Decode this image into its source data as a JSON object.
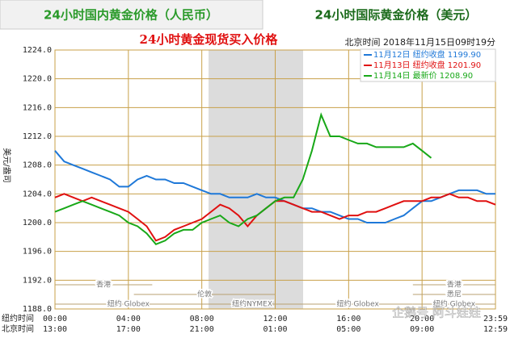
{
  "tabs": [
    "24小时国内黄金价格（人民币）",
    "24小时国际黄金价格（美元）"
  ],
  "chart_data": {
    "type": "line",
    "title": "24小时黄金现货买入价格",
    "subtitle": "北京时间 2018年11月15日09时19分",
    "y_label": "美元/盎司",
    "x_row_labels": [
      "纽约时间",
      "北京时间"
    ],
    "x": [
      0,
      0.5,
      1,
      1.5,
      2,
      2.5,
      3,
      3.5,
      4,
      4.5,
      5,
      5.5,
      6,
      6.5,
      7,
      7.5,
      8,
      8.5,
      9,
      9.5,
      10,
      10.5,
      11,
      11.5,
      12,
      12.5,
      13,
      13.5,
      14,
      14.5,
      15,
      15.5,
      16,
      16.5,
      17,
      17.5,
      18,
      18.5,
      19,
      19.5,
      20,
      20.5,
      21,
      21.5,
      22,
      22.5,
      23,
      23.5,
      24
    ],
    "series": [
      {
        "name": "11月12日 纽约收盘 1199.90",
        "color": "#1e78d8",
        "values": [
          1210,
          1208.5,
          1208,
          1207.5,
          1207,
          1206.5,
          1206,
          1205,
          1205,
          1206,
          1206.5,
          1206,
          1206,
          1205.5,
          1205.5,
          1205,
          1204.5,
          1204,
          1204,
          1203.5,
          1203.5,
          1203.5,
          1204,
          1203.5,
          1203.5,
          1203,
          1202.5,
          1202,
          1202,
          1201.5,
          1201.5,
          1201,
          1200.5,
          1200.5,
          1200,
          1200,
          1200,
          1200.5,
          1201,
          1202,
          1203,
          1203,
          1203.5,
          1204,
          1204.5,
          1204.5,
          1204.5,
          1204,
          1204
        ]
      },
      {
        "name": "11月13日 纽约收盘 1201.90",
        "color": "#e01010",
        "values": [
          1203.5,
          1204,
          1203.5,
          1203,
          1203.5,
          1203,
          1202.5,
          1202,
          1201.5,
          1200.5,
          1199.5,
          1197.5,
          1198,
          1199,
          1199.5,
          1200,
          1200.5,
          1201.5,
          1202.5,
          1202,
          1201,
          1199.5,
          1201,
          1202,
          1203,
          1203,
          1202.5,
          1202,
          1201.5,
          1201.5,
          1201,
          1200.5,
          1201,
          1201,
          1201.5,
          1201.5,
          1202,
          1202.5,
          1203,
          1203,
          1203,
          1203.5,
          1203.5,
          1204,
          1203.5,
          1203.5,
          1203,
          1203,
          1202.5
        ]
      },
      {
        "name": "11月14日 最新价 1208.90",
        "color": "#18a818",
        "values": [
          1201.5,
          1202,
          1202.5,
          1203,
          1202.5,
          1202,
          1201.5,
          1201,
          1200,
          1199.5,
          1198.5,
          1197,
          1197.5,
          1198.5,
          1199,
          1199,
          1200,
          1200.5,
          1201,
          1200,
          1199.5,
          1200.5,
          1201,
          1202,
          1203,
          1203.5,
          1203.5,
          1206,
          1210,
          1215,
          1212,
          1212,
          1211.5,
          1211,
          1211,
          1210.5,
          1210.5,
          1210.5,
          1210.5,
          1211,
          1210,
          1209,
          null,
          null,
          null,
          null,
          null,
          null,
          null
        ]
      }
    ],
    "xlim": [
      0,
      24
    ],
    "xticks": [
      {
        "value": 0,
        "label": "00:00"
      },
      {
        "value": 4,
        "label": "04:00"
      },
      {
        "value": 8,
        "label": "08:00"
      },
      {
        "value": 12,
        "label": "12:00"
      },
      {
        "value": 16,
        "label": "16:00"
      },
      {
        "value": 20,
        "label": "20:00"
      },
      {
        "value": 24,
        "label": "23:59"
      }
    ],
    "xticks_beijing": [
      "13:00",
      "17:00",
      "21:00",
      "01:00",
      "05:00",
      "09:00",
      "12:59"
    ],
    "ylim": [
      1188,
      1224
    ],
    "yticks": [
      {
        "value": 1188,
        "label": "1188.0"
      },
      {
        "value": 1192,
        "label": "1192.0"
      },
      {
        "value": 1196,
        "label": "1196.0"
      },
      {
        "value": 1200,
        "label": "1200.0"
      },
      {
        "value": 1204,
        "label": "1204.0"
      },
      {
        "value": 1208,
        "label": "1208.0"
      },
      {
        "value": 1212,
        "label": "1212.0"
      },
      {
        "value": 1216,
        "label": "1216.0"
      },
      {
        "value": 1220,
        "label": "1220.0"
      },
      {
        "value": 1224,
        "label": "1224.0"
      }
    ],
    "grid": true,
    "sessions": [
      "香港",
      "伦敦",
      "纽约 Globex",
      "纽约NYMEX",
      "纽约 Globex",
      "悉尼",
      "香港",
      "纽约 Globex"
    ]
  },
  "watermark": "企鹅号 阿斗娃娃"
}
